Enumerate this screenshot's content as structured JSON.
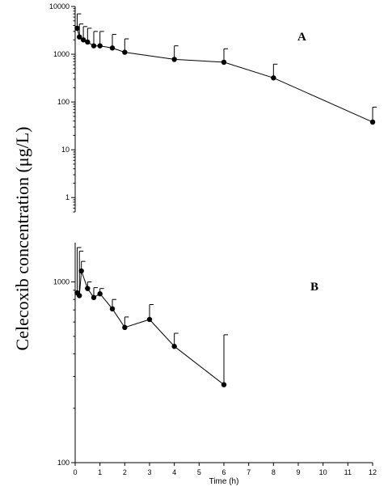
{
  "chart_data": {
    "ylabel": "Celecoxib concentration (μg/L)",
    "xlabel": "Time (h)",
    "x_ticks": [
      0,
      1,
      2,
      3,
      4,
      5,
      6,
      7,
      8,
      9,
      10,
      11,
      12
    ],
    "xlim": [
      0,
      12
    ],
    "panels": [
      {
        "label": "A",
        "type": "line",
        "yscale": "log",
        "ylim": [
          0.5,
          10000
        ],
        "y_ticks": [
          1,
          10,
          100,
          1000,
          10000
        ],
        "y_tick_labels": [
          "1",
          "10",
          "100",
          "1000",
          "10000"
        ],
        "series": [
          {
            "x": [
              0.08,
              0.17,
              0.33,
              0.5,
              0.75,
              1,
              1.5,
              2,
              4,
              6,
              8,
              12
            ],
            "y": [
              3500,
              2300,
              2000,
              1800,
              1500,
              1500,
              1350,
              1100,
              780,
              680,
              320,
              38
            ],
            "error_upper": [
              7000,
              4300,
              3800,
              3500,
              3000,
              3000,
              2600,
              2100,
              1500,
              1300,
              620,
              78
            ]
          }
        ]
      },
      {
        "label": "B",
        "type": "line",
        "yscale": "log",
        "ylim": [
          100,
          1650
        ],
        "y_ticks": [
          100,
          1000
        ],
        "y_tick_labels": [
          "100",
          "1000"
        ],
        "series": [
          {
            "x": [
              0.08,
              0.17,
              0.25,
              0.5,
              0.75,
              1,
              1.5,
              2,
              3,
              4,
              6
            ],
            "y": [
              870,
              840,
              1150,
              920,
              820,
              860,
              710,
              560,
              620,
              440,
              270
            ],
            "error_upper": [
              1550,
              1480,
              1300,
              1000,
              930,
              920,
              800,
              640,
              750,
              520,
              510
            ]
          }
        ]
      }
    ]
  }
}
